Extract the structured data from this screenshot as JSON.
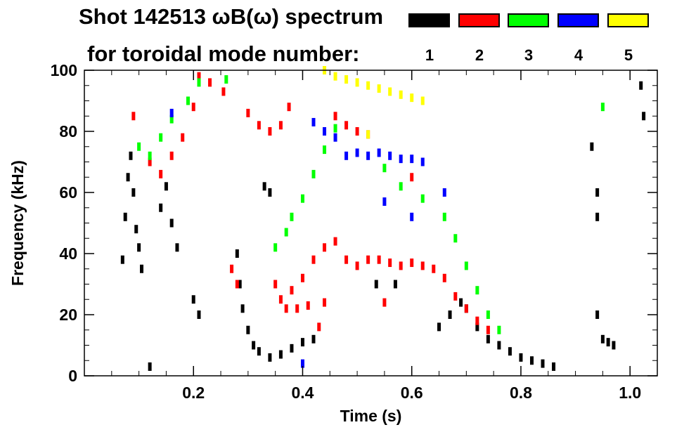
{
  "title": {
    "line1": "Shot 142513 ωB(ω) spectrum",
    "line2": "for toroidal mode number:"
  },
  "legend": [
    {
      "label": "1",
      "color": "#000000"
    },
    {
      "label": "2",
      "color": "#ff0000"
    },
    {
      "label": "3",
      "color": "#00ff00"
    },
    {
      "label": "4",
      "color": "#0000ff"
    },
    {
      "label": "5",
      "color": "#ffff00"
    }
  ],
  "chart_data": {
    "type": "scatter",
    "title": "Shot 142513 ωB(ω) spectrum for toroidal mode number",
    "xlabel": "Time (s)",
    "ylabel": "Frequency (kHz)",
    "xlim": [
      0.0,
      1.05
    ],
    "ylim": [
      0,
      100
    ],
    "xticks": [
      0.2,
      0.4,
      0.6,
      0.8,
      1.0
    ],
    "xtick_labels": [
      "0.2",
      "0.4",
      "0.6",
      "0.8",
      "1.0"
    ],
    "yticks": [
      0,
      20,
      40,
      60,
      80,
      100
    ],
    "ytick_labels": [
      "0",
      "20",
      "40",
      "60",
      "80",
      "100"
    ],
    "series": [
      {
        "name": "n=1",
        "color": "#000000",
        "points": [
          [
            0.07,
            38
          ],
          [
            0.075,
            52
          ],
          [
            0.08,
            65
          ],
          [
            0.085,
            72
          ],
          [
            0.09,
            60
          ],
          [
            0.095,
            48
          ],
          [
            0.1,
            42
          ],
          [
            0.105,
            35
          ],
          [
            0.14,
            55
          ],
          [
            0.15,
            62
          ],
          [
            0.16,
            50
          ],
          [
            0.17,
            42
          ],
          [
            0.12,
            3
          ],
          [
            0.2,
            25
          ],
          [
            0.21,
            20
          ],
          [
            0.28,
            40
          ],
          [
            0.285,
            30
          ],
          [
            0.29,
            22
          ],
          [
            0.3,
            15
          ],
          [
            0.31,
            10
          ],
          [
            0.32,
            8
          ],
          [
            0.34,
            6
          ],
          [
            0.36,
            7
          ],
          [
            0.38,
            9
          ],
          [
            0.4,
            11
          ],
          [
            0.42,
            12
          ],
          [
            0.33,
            62
          ],
          [
            0.34,
            60
          ],
          [
            0.535,
            30
          ],
          [
            0.57,
            30
          ],
          [
            0.65,
            16
          ],
          [
            0.67,
            20
          ],
          [
            0.69,
            24
          ],
          [
            0.7,
            22
          ],
          [
            0.72,
            16
          ],
          [
            0.74,
            12
          ],
          [
            0.76,
            10
          ],
          [
            0.78,
            8
          ],
          [
            0.8,
            6
          ],
          [
            0.82,
            5
          ],
          [
            0.84,
            4
          ],
          [
            0.86,
            3
          ],
          [
            0.93,
            75
          ],
          [
            0.94,
            60
          ],
          [
            0.94,
            52
          ],
          [
            0.94,
            20
          ],
          [
            0.95,
            12
          ],
          [
            0.96,
            11
          ],
          [
            0.97,
            10
          ],
          [
            1.02,
            95
          ],
          [
            1.025,
            85
          ]
        ]
      },
      {
        "name": "n=2",
        "color": "#ff0000",
        "points": [
          [
            0.09,
            85
          ],
          [
            0.12,
            70
          ],
          [
            0.14,
            66
          ],
          [
            0.16,
            72
          ],
          [
            0.18,
            78
          ],
          [
            0.2,
            88
          ],
          [
            0.21,
            98
          ],
          [
            0.23,
            96
          ],
          [
            0.255,
            93
          ],
          [
            0.27,
            35
          ],
          [
            0.28,
            30
          ],
          [
            0.3,
            86
          ],
          [
            0.32,
            82
          ],
          [
            0.34,
            80
          ],
          [
            0.36,
            82
          ],
          [
            0.375,
            88
          ],
          [
            0.35,
            30
          ],
          [
            0.37,
            22
          ],
          [
            0.39,
            22
          ],
          [
            0.41,
            23
          ],
          [
            0.44,
            24
          ],
          [
            0.46,
            85
          ],
          [
            0.48,
            82
          ],
          [
            0.5,
            80
          ],
          [
            0.52,
            79
          ],
          [
            0.36,
            25
          ],
          [
            0.38,
            28
          ],
          [
            0.4,
            32
          ],
          [
            0.42,
            38
          ],
          [
            0.44,
            42
          ],
          [
            0.46,
            44
          ],
          [
            0.48,
            38
          ],
          [
            0.5,
            36
          ],
          [
            0.52,
            38
          ],
          [
            0.54,
            38
          ],
          [
            0.56,
            37
          ],
          [
            0.58,
            36
          ],
          [
            0.6,
            37
          ],
          [
            0.62,
            36
          ],
          [
            0.64,
            35
          ],
          [
            0.66,
            32
          ],
          [
            0.68,
            26
          ],
          [
            0.7,
            22
          ],
          [
            0.72,
            18
          ],
          [
            0.74,
            15
          ],
          [
            0.6,
            65
          ],
          [
            0.55,
            24
          ],
          [
            0.43,
            16
          ]
        ]
      },
      {
        "name": "n=3",
        "color": "#00ff00",
        "points": [
          [
            0.1,
            75
          ],
          [
            0.12,
            72
          ],
          [
            0.14,
            78
          ],
          [
            0.16,
            84
          ],
          [
            0.19,
            90
          ],
          [
            0.21,
            96
          ],
          [
            0.26,
            97
          ],
          [
            0.35,
            42
          ],
          [
            0.37,
            47
          ],
          [
            0.38,
            52
          ],
          [
            0.4,
            58
          ],
          [
            0.42,
            66
          ],
          [
            0.44,
            74
          ],
          [
            0.46,
            81
          ],
          [
            0.55,
            68
          ],
          [
            0.58,
            62
          ],
          [
            0.62,
            58
          ],
          [
            0.66,
            52
          ],
          [
            0.68,
            45
          ],
          [
            0.7,
            36
          ],
          [
            0.72,
            28
          ],
          [
            0.74,
            20
          ],
          [
            0.76,
            15
          ],
          [
            0.95,
            88
          ]
        ]
      },
      {
        "name": "n=4",
        "color": "#0000ff",
        "points": [
          [
            0.16,
            86
          ],
          [
            0.42,
            83
          ],
          [
            0.44,
            80
          ],
          [
            0.46,
            78
          ],
          [
            0.48,
            72
          ],
          [
            0.5,
            73
          ],
          [
            0.52,
            72
          ],
          [
            0.54,
            73
          ],
          [
            0.56,
            72
          ],
          [
            0.58,
            71
          ],
          [
            0.6,
            71
          ],
          [
            0.62,
            70
          ],
          [
            0.6,
            52
          ],
          [
            0.66,
            60
          ],
          [
            0.55,
            57
          ],
          [
            0.4,
            4
          ]
        ]
      },
      {
        "name": "n=5",
        "color": "#ffff00",
        "points": [
          [
            0.44,
            100
          ],
          [
            0.46,
            98
          ],
          [
            0.48,
            97
          ],
          [
            0.5,
            96
          ],
          [
            0.52,
            95
          ],
          [
            0.54,
            94
          ],
          [
            0.56,
            93
          ],
          [
            0.58,
            92
          ],
          [
            0.6,
            91
          ],
          [
            0.62,
            90
          ],
          [
            0.52,
            79
          ]
        ]
      }
    ]
  }
}
